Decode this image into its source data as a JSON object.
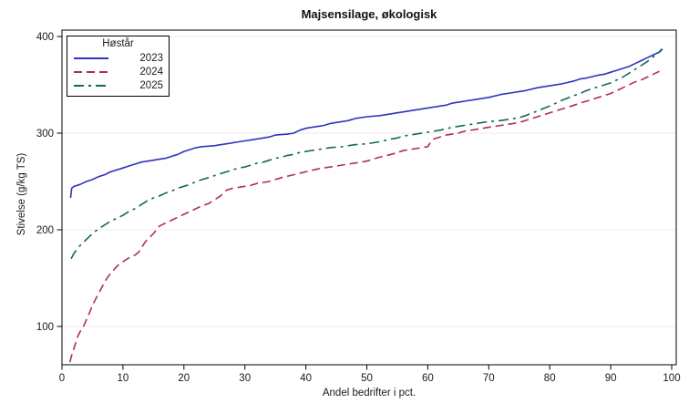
{
  "chart_data": {
    "type": "line",
    "title": "Majsensilage, økologisk",
    "xlabel": "Andel bedrifter i pct.",
    "ylabel": "Stivelse (g/kg TS)",
    "xlim": [
      0,
      100.8
    ],
    "ylim": [
      61,
      407
    ],
    "x_ticks": [
      0,
      10,
      20,
      30,
      40,
      50,
      60,
      70,
      80,
      90,
      100
    ],
    "y_ticks": [
      100,
      200,
      300,
      400
    ],
    "grid": "horizontal",
    "frame": true,
    "grid_color": "#ebebeb",
    "axis_color": "#000000",
    "legend_title": "Høstår",
    "legend_position": "top-left-inside",
    "series": [
      {
        "name": "2023",
        "color": "#3232c0",
        "dash": "solid",
        "points": [
          [
            1.4,
            233
          ],
          [
            1.6,
            243
          ],
          [
            2,
            245
          ],
          [
            3,
            247
          ],
          [
            4,
            250
          ],
          [
            5,
            252
          ],
          [
            6,
            255
          ],
          [
            7,
            257
          ],
          [
            8,
            260
          ],
          [
            9,
            262
          ],
          [
            10,
            264
          ],
          [
            11,
            266
          ],
          [
            12,
            268
          ],
          [
            13,
            270
          ],
          [
            14,
            271
          ],
          [
            15,
            272
          ],
          [
            16,
            273
          ],
          [
            17,
            274
          ],
          [
            18,
            276
          ],
          [
            19,
            278
          ],
          [
            20,
            281
          ],
          [
            21,
            283
          ],
          [
            22,
            285
          ],
          [
            23,
            286
          ],
          [
            25,
            287
          ],
          [
            26,
            288
          ],
          [
            27,
            289
          ],
          [
            28,
            290
          ],
          [
            29,
            291
          ],
          [
            30,
            292
          ],
          [
            31,
            293
          ],
          [
            32,
            294
          ],
          [
            33,
            295
          ],
          [
            34,
            296
          ],
          [
            35,
            298
          ],
          [
            37,
            299
          ],
          [
            38,
            300
          ],
          [
            39,
            303
          ],
          [
            40,
            305
          ],
          [
            41,
            306
          ],
          [
            42,
            307
          ],
          [
            43,
            308
          ],
          [
            44,
            310
          ],
          [
            45,
            311
          ],
          [
            46,
            312
          ],
          [
            47,
            313
          ],
          [
            48,
            315
          ],
          [
            50,
            317
          ],
          [
            52,
            318
          ],
          [
            54,
            320
          ],
          [
            55,
            321
          ],
          [
            56,
            322
          ],
          [
            58,
            324
          ],
          [
            60,
            326
          ],
          [
            62,
            328
          ],
          [
            63,
            329
          ],
          [
            64,
            331
          ],
          [
            65,
            332
          ],
          [
            66,
            333
          ],
          [
            68,
            335
          ],
          [
            70,
            337
          ],
          [
            72,
            340
          ],
          [
            74,
            342
          ],
          [
            75,
            343
          ],
          [
            76,
            344
          ],
          [
            78,
            347
          ],
          [
            80,
            349
          ],
          [
            82,
            351
          ],
          [
            84,
            354
          ],
          [
            85,
            356
          ],
          [
            86,
            357
          ],
          [
            88,
            360
          ],
          [
            89,
            361
          ],
          [
            90,
            363
          ],
          [
            91,
            365
          ],
          [
            92,
            367
          ],
          [
            93,
            369
          ],
          [
            94,
            372
          ],
          [
            95,
            375
          ],
          [
            96,
            378
          ],
          [
            97,
            381
          ],
          [
            98,
            384
          ],
          [
            98.5,
            387
          ]
        ]
      },
      {
        "name": "2024",
        "color": "#b03048",
        "dash": "dashed",
        "points": [
          [
            1.3,
            63
          ],
          [
            1.5,
            68
          ],
          [
            1.8,
            74
          ],
          [
            2,
            78
          ],
          [
            2.3,
            84
          ],
          [
            2.6,
            90
          ],
          [
            3,
            95
          ],
          [
            3.6,
            101
          ],
          [
            4,
            107
          ],
          [
            4.5,
            114
          ],
          [
            5,
            122
          ],
          [
            5.5,
            128
          ],
          [
            6,
            134
          ],
          [
            6.5,
            140
          ],
          [
            7,
            146
          ],
          [
            7.5,
            151
          ],
          [
            8,
            155
          ],
          [
            8.7,
            160
          ],
          [
            9.3,
            164
          ],
          [
            10,
            167
          ],
          [
            11,
            171
          ],
          [
            12,
            174
          ],
          [
            12.6,
            177
          ],
          [
            13,
            181
          ],
          [
            13.6,
            187
          ],
          [
            14,
            190
          ],
          [
            15,
            196
          ],
          [
            15.6,
            201
          ],
          [
            16,
            204
          ],
          [
            17,
            207
          ],
          [
            18,
            210
          ],
          [
            19,
            213
          ],
          [
            20,
            216
          ],
          [
            21,
            219
          ],
          [
            22,
            222
          ],
          [
            23,
            225
          ],
          [
            24,
            227
          ],
          [
            25,
            231
          ],
          [
            26,
            235
          ],
          [
            26.6,
            239
          ],
          [
            27,
            241
          ],
          [
            28,
            243
          ],
          [
            29,
            244
          ],
          [
            30,
            245
          ],
          [
            31,
            246
          ],
          [
            32,
            248
          ],
          [
            34,
            250
          ],
          [
            35,
            252
          ],
          [
            36,
            254
          ],
          [
            38,
            257
          ],
          [
            40,
            260
          ],
          [
            42,
            263
          ],
          [
            44,
            265
          ],
          [
            45,
            266
          ],
          [
            46,
            267
          ],
          [
            48,
            269
          ],
          [
            50,
            271
          ],
          [
            52,
            275
          ],
          [
            54,
            278
          ],
          [
            55,
            280
          ],
          [
            56,
            282
          ],
          [
            58,
            284
          ],
          [
            60,
            286
          ],
          [
            60.5,
            291
          ],
          [
            61,
            294
          ],
          [
            62,
            296
          ],
          [
            63,
            298
          ],
          [
            64,
            299
          ],
          [
            65,
            300
          ],
          [
            66,
            302
          ],
          [
            68,
            304
          ],
          [
            70,
            306
          ],
          [
            72,
            308
          ],
          [
            74,
            310
          ],
          [
            75,
            311
          ],
          [
            76,
            313
          ],
          [
            78,
            317
          ],
          [
            80,
            321
          ],
          [
            82,
            325
          ],
          [
            84,
            329
          ],
          [
            85,
            331
          ],
          [
            86,
            333
          ],
          [
            88,
            337
          ],
          [
            90,
            341
          ],
          [
            91,
            344
          ],
          [
            92,
            347
          ],
          [
            93,
            350
          ],
          [
            94,
            353
          ],
          [
            95,
            355
          ],
          [
            96,
            358
          ],
          [
            97,
            361
          ],
          [
            98,
            364
          ]
        ]
      },
      {
        "name": "2025",
        "color": "#116a5c",
        "dash": "dash-dot",
        "points": [
          [
            1.5,
            170
          ],
          [
            2,
            176
          ],
          [
            2.5,
            180
          ],
          [
            3,
            184
          ],
          [
            4,
            190
          ],
          [
            5,
            196
          ],
          [
            6,
            201
          ],
          [
            7,
            205
          ],
          [
            8,
            209
          ],
          [
            9,
            212
          ],
          [
            10,
            215
          ],
          [
            11,
            219
          ],
          [
            12,
            222
          ],
          [
            13,
            226
          ],
          [
            14,
            230
          ],
          [
            15,
            233
          ],
          [
            16,
            235
          ],
          [
            17,
            238
          ],
          [
            18,
            240
          ],
          [
            19,
            243
          ],
          [
            20,
            245
          ],
          [
            21,
            247
          ],
          [
            22,
            250
          ],
          [
            23,
            252
          ],
          [
            24,
            254
          ],
          [
            25,
            256
          ],
          [
            26,
            258
          ],
          [
            27,
            260
          ],
          [
            28,
            262
          ],
          [
            29,
            264
          ],
          [
            30,
            265
          ],
          [
            31,
            267
          ],
          [
            32,
            269
          ],
          [
            33,
            270
          ],
          [
            34,
            272
          ],
          [
            35,
            274
          ],
          [
            36,
            275
          ],
          [
            37,
            277
          ],
          [
            38,
            278
          ],
          [
            39,
            280
          ],
          [
            40,
            281
          ],
          [
            42,
            283
          ],
          [
            44,
            285
          ],
          [
            46,
            286
          ],
          [
            48,
            288
          ],
          [
            50,
            289
          ],
          [
            52,
            291
          ],
          [
            54,
            294
          ],
          [
            55,
            295
          ],
          [
            56,
            297
          ],
          [
            58,
            299
          ],
          [
            60,
            301
          ],
          [
            62,
            303
          ],
          [
            64,
            306
          ],
          [
            65,
            307
          ],
          [
            66,
            308
          ],
          [
            68,
            310
          ],
          [
            70,
            312
          ],
          [
            72,
            313
          ],
          [
            74,
            315
          ],
          [
            75,
            316
          ],
          [
            76,
            318
          ],
          [
            78,
            323
          ],
          [
            80,
            328
          ],
          [
            82,
            334
          ],
          [
            84,
            339
          ],
          [
            85,
            341
          ],
          [
            86,
            344
          ],
          [
            87,
            346
          ],
          [
            88,
            348
          ],
          [
            89,
            350
          ],
          [
            90,
            352
          ],
          [
            91,
            355
          ],
          [
            92,
            358
          ],
          [
            93,
            362
          ],
          [
            94,
            366
          ],
          [
            95,
            370
          ],
          [
            96,
            374
          ],
          [
            97,
            379
          ],
          [
            98,
            384
          ],
          [
            98.3,
            387
          ]
        ]
      }
    ]
  }
}
